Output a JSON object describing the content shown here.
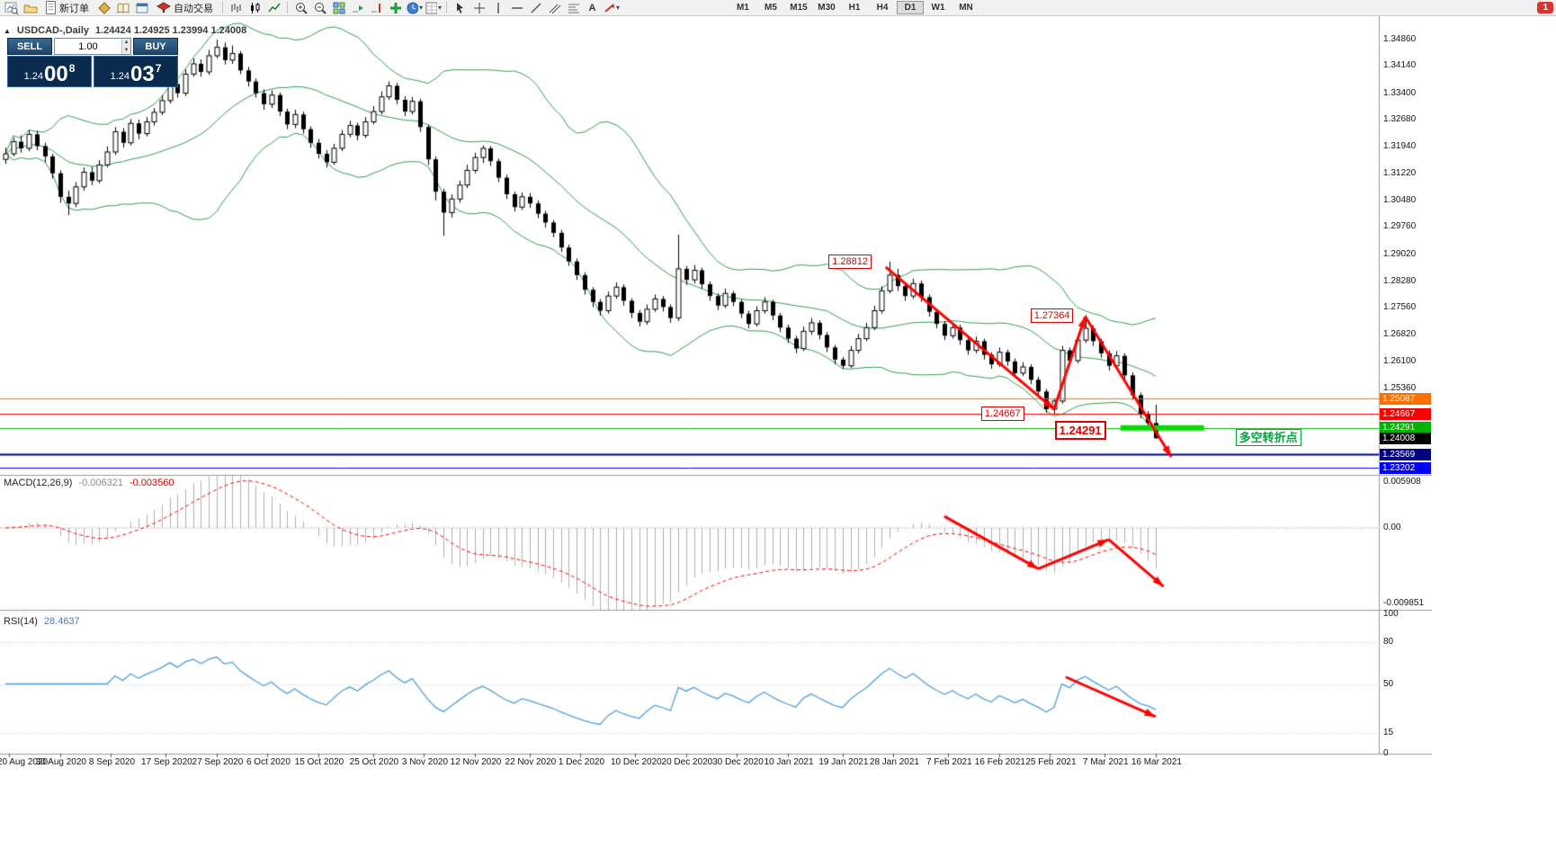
{
  "toolbar": {
    "new_order_label": "新订单",
    "autotrading_label": "自动交易",
    "timeframes": [
      "M1",
      "M5",
      "M15",
      "M30",
      "H1",
      "H4",
      "D1",
      "W1",
      "MN"
    ],
    "active_timeframe": "D1",
    "notification_badge": "1"
  },
  "chart": {
    "symbol_period": "USDCAD-,Daily",
    "ohlc_line": "1.24424 1.24925 1.23994 1.24008"
  },
  "one_click": {
    "sell_label": "SELL",
    "buy_label": "BUY",
    "volume": "1.00",
    "bid": {
      "prefix": "1.24",
      "big": "00",
      "sup": "8"
    },
    "ask": {
      "prefix": "1.24",
      "big": "03",
      "sup": "7"
    }
  },
  "macd_panel": {
    "label": "MACD(12,26,9)",
    "main_value": "-0.006321",
    "signal_value": "-0.003560"
  },
  "rsi_panel": {
    "label": "RSI(14)",
    "value": "28.4637"
  },
  "chart_data": {
    "type": "candlestick",
    "symbol": "USDCAD-",
    "timeframe": "Daily",
    "current_ohlc": {
      "open": 1.24424,
      "high": 1.24925,
      "low": 1.23994,
      "close": 1.24008
    },
    "colors": {
      "bollinger": "#2f9e4f",
      "bull": "#ffffff",
      "bear": "#000000",
      "outline": "#000000",
      "macd_histogram": "#b0b0b0",
      "macd_signal": "#ff0000",
      "rsi_line": "#4f9fe0",
      "arrow": "#ff0000",
      "separator": "#9a9a9a"
    },
    "indicators": {
      "bollinger": {
        "period": 20,
        "deviation": 2
      },
      "macd": {
        "fast": 12,
        "slow": 26,
        "signal": 9
      },
      "rsi": {
        "period": 14,
        "levels": [
          80,
          50,
          15
        ]
      }
    },
    "candles": [
      [
        1.316,
        1.3192,
        1.3148,
        1.3175
      ],
      [
        1.3175,
        1.322,
        1.3168,
        1.3208
      ],
      [
        1.3208,
        1.3225,
        1.3178,
        1.319
      ],
      [
        1.319,
        1.324,
        1.3182,
        1.3228
      ],
      [
        1.3228,
        1.3238,
        1.3185,
        1.3196
      ],
      [
        1.3196,
        1.3205,
        1.3152,
        1.3168
      ],
      [
        1.3168,
        1.3175,
        1.3108,
        1.3122
      ],
      [
        1.3122,
        1.313,
        1.3042,
        1.3058
      ],
      [
        1.3058,
        1.3075,
        1.3008,
        1.304
      ],
      [
        1.304,
        1.3098,
        1.303,
        1.3085
      ],
      [
        1.3085,
        1.3138,
        1.3075,
        1.3125
      ],
      [
        1.3125,
        1.314,
        1.309,
        1.3102
      ],
      [
        1.3102,
        1.3158,
        1.3095,
        1.3145
      ],
      [
        1.3145,
        1.3195,
        1.3138,
        1.318
      ],
      [
        1.318,
        1.3248,
        1.3172,
        1.3235
      ],
      [
        1.3235,
        1.3245,
        1.3192,
        1.3205
      ],
      [
        1.3205,
        1.327,
        1.3198,
        1.3258
      ],
      [
        1.3258,
        1.3268,
        1.3215,
        1.323
      ],
      [
        1.323,
        1.3275,
        1.3222,
        1.3262
      ],
      [
        1.3262,
        1.33,
        1.3252,
        1.3288
      ],
      [
        1.3288,
        1.3335,
        1.328,
        1.332
      ],
      [
        1.332,
        1.338,
        1.3312,
        1.3365
      ],
      [
        1.3365,
        1.3375,
        1.3328,
        1.334
      ],
      [
        1.334,
        1.3405,
        1.3332,
        1.3392
      ],
      [
        1.3392,
        1.3435,
        1.3385,
        1.342
      ],
      [
        1.342,
        1.3432,
        1.3385,
        1.3398
      ],
      [
        1.3398,
        1.3458,
        1.339,
        1.3442
      ],
      [
        1.3442,
        1.3486,
        1.3435,
        1.3465
      ],
      [
        1.3465,
        1.3478,
        1.3418,
        1.343
      ],
      [
        1.343,
        1.347,
        1.342,
        1.3448
      ],
      [
        1.3448,
        1.3455,
        1.3392,
        1.3402
      ],
      [
        1.3402,
        1.3412,
        1.3358,
        1.3372
      ],
      [
        1.3372,
        1.338,
        1.3328,
        1.334
      ],
      [
        1.334,
        1.335,
        1.3295,
        1.331
      ],
      [
        1.331,
        1.3348,
        1.33,
        1.3335
      ],
      [
        1.3335,
        1.3342,
        1.3278,
        1.329
      ],
      [
        1.329,
        1.3298,
        1.3242,
        1.3255
      ],
      [
        1.3255,
        1.3295,
        1.3245,
        1.3282
      ],
      [
        1.3282,
        1.329,
        1.323,
        1.3242
      ],
      [
        1.3242,
        1.325,
        1.3192,
        1.3205
      ],
      [
        1.3205,
        1.3215,
        1.3162,
        1.3175
      ],
      [
        1.3175,
        1.3185,
        1.3138,
        1.3152
      ],
      [
        1.3152,
        1.3202,
        1.3145,
        1.319
      ],
      [
        1.319,
        1.324,
        1.3182,
        1.3228
      ],
      [
        1.3228,
        1.3265,
        1.322,
        1.3252
      ],
      [
        1.3252,
        1.326,
        1.3212,
        1.3225
      ],
      [
        1.3225,
        1.3275,
        1.3218,
        1.3262
      ],
      [
        1.3262,
        1.3305,
        1.3255,
        1.329
      ],
      [
        1.329,
        1.3345,
        1.3282,
        1.333
      ],
      [
        1.333,
        1.3372,
        1.3322,
        1.336
      ],
      [
        1.336,
        1.3368,
        1.331,
        1.3322
      ],
      [
        1.3322,
        1.3332,
        1.3278,
        1.329
      ],
      [
        1.329,
        1.333,
        1.3282,
        1.3318
      ],
      [
        1.3318,
        1.3325,
        1.3235,
        1.3248
      ],
      [
        1.3248,
        1.3255,
        1.3145,
        1.316
      ],
      [
        1.316,
        1.3168,
        1.3048,
        1.3072
      ],
      [
        1.3072,
        1.308,
        1.2952,
        1.3015
      ],
      [
        1.3015,
        1.3065,
        1.3002,
        1.3052
      ],
      [
        1.3052,
        1.3102,
        1.3042,
        1.309
      ],
      [
        1.309,
        1.3145,
        1.3082,
        1.313
      ],
      [
        1.313,
        1.3178,
        1.3122,
        1.3165
      ],
      [
        1.3165,
        1.3198,
        1.315,
        1.319
      ],
      [
        1.319,
        1.3196,
        1.3142,
        1.3155
      ],
      [
        1.3155,
        1.3162,
        1.3098,
        1.311
      ],
      [
        1.311,
        1.3118,
        1.3052,
        1.3065
      ],
      [
        1.3065,
        1.3072,
        1.3018,
        1.303
      ],
      [
        1.303,
        1.307,
        1.3022,
        1.3058
      ],
      [
        1.3058,
        1.3068,
        1.3028,
        1.304
      ],
      [
        1.304,
        1.3048,
        1.3,
        1.3012
      ],
      [
        1.3012,
        1.302,
        1.2975,
        1.2988
      ],
      [
        1.2988,
        1.2995,
        1.2948,
        1.296
      ],
      [
        1.296,
        1.2968,
        1.2908,
        1.292
      ],
      [
        1.292,
        1.2928,
        1.287,
        1.2882
      ],
      [
        1.2882,
        1.289,
        1.2832,
        1.2845
      ],
      [
        1.2845,
        1.2852,
        1.2792,
        1.2805
      ],
      [
        1.2805,
        1.2812,
        1.2758,
        1.2772
      ],
      [
        1.2772,
        1.278,
        1.2735,
        1.2748
      ],
      [
        1.2748,
        1.28,
        1.274,
        1.2788
      ],
      [
        1.2788,
        1.2825,
        1.278,
        1.2812
      ],
      [
        1.2812,
        1.282,
        1.2762,
        1.2775
      ],
      [
        1.2775,
        1.2782,
        1.2728,
        1.2742
      ],
      [
        1.2742,
        1.275,
        1.2705,
        1.2718
      ],
      [
        1.2718,
        1.2765,
        1.271,
        1.2752
      ],
      [
        1.2752,
        1.2792,
        1.2745,
        1.278
      ],
      [
        1.278,
        1.2788,
        1.2746,
        1.2758
      ],
      [
        1.2758,
        1.2765,
        1.2715,
        1.2728
      ],
      [
        1.2728,
        1.2955,
        1.272,
        1.2862
      ],
      [
        1.2862,
        1.287,
        1.2818,
        1.2832
      ],
      [
        1.2832,
        1.2872,
        1.2822,
        1.2858
      ],
      [
        1.2858,
        1.2865,
        1.2808,
        1.282
      ],
      [
        1.282,
        1.2828,
        1.2775,
        1.2788
      ],
      [
        1.2788,
        1.2795,
        1.275,
        1.2762
      ],
      [
        1.2762,
        1.2808,
        1.2755,
        1.2795
      ],
      [
        1.2795,
        1.2802,
        1.276,
        1.2772
      ],
      [
        1.2772,
        1.2778,
        1.2728,
        1.274
      ],
      [
        1.274,
        1.2748,
        1.27,
        1.2712
      ],
      [
        1.2712,
        1.276,
        1.2705,
        1.2748
      ],
      [
        1.2748,
        1.2785,
        1.274,
        1.2772
      ],
      [
        1.2772,
        1.2778,
        1.2722,
        1.2735
      ],
      [
        1.2735,
        1.2742,
        1.269,
        1.2702
      ],
      [
        1.2702,
        1.271,
        1.266,
        1.2672
      ],
      [
        1.2672,
        1.268,
        1.2632,
        1.2645
      ],
      [
        1.2645,
        1.2705,
        1.2638,
        1.2692
      ],
      [
        1.2692,
        1.2728,
        1.2682,
        1.2715
      ],
      [
        1.2715,
        1.2722,
        1.267,
        1.2682
      ],
      [
        1.2682,
        1.269,
        1.2635,
        1.2648
      ],
      [
        1.2648,
        1.2655,
        1.2602,
        1.2615
      ],
      [
        1.2615,
        1.2622,
        1.259,
        1.2598
      ],
      [
        1.2598,
        1.2652,
        1.2592,
        1.264
      ],
      [
        1.264,
        1.2685,
        1.2632,
        1.2672
      ],
      [
        1.2672,
        1.2715,
        1.2665,
        1.2702
      ],
      [
        1.2702,
        1.2762,
        1.2695,
        1.2748
      ],
      [
        1.2748,
        1.2815,
        1.274,
        1.2802
      ],
      [
        1.2802,
        1.28812,
        1.2795,
        1.2845
      ],
      [
        1.2845,
        1.2862,
        1.2802,
        1.2815
      ],
      [
        1.2815,
        1.2825,
        1.2775,
        1.2788
      ],
      [
        1.2788,
        1.2835,
        1.278,
        1.2822
      ],
      [
        1.2822,
        1.283,
        1.2772,
        1.2785
      ],
      [
        1.2785,
        1.2792,
        1.2732,
        1.2745
      ],
      [
        1.2745,
        1.2752,
        1.27,
        1.2712
      ],
      [
        1.2712,
        1.272,
        1.2668,
        1.268
      ],
      [
        1.268,
        1.2715,
        1.2672,
        1.2702
      ],
      [
        1.2702,
        1.271,
        1.2655,
        1.2668
      ],
      [
        1.2668,
        1.2675,
        1.2628,
        1.264
      ],
      [
        1.264,
        1.2678,
        1.2632,
        1.2665
      ],
      [
        1.2665,
        1.2672,
        1.2615,
        1.2628
      ],
      [
        1.2628,
        1.2635,
        1.259,
        1.2602
      ],
      [
        1.2602,
        1.2648,
        1.2595,
        1.2635
      ],
      [
        1.2635,
        1.2642,
        1.2598,
        1.261
      ],
      [
        1.261,
        1.2618,
        1.2565,
        1.2578
      ],
      [
        1.2578,
        1.2608,
        1.257,
        1.2595
      ],
      [
        1.2595,
        1.2602,
        1.2548,
        1.256
      ],
      [
        1.256,
        1.2568,
        1.2515,
        1.2528
      ],
      [
        1.2528,
        1.2535,
        1.247,
        1.248
      ],
      [
        1.248,
        1.251,
        1.24667,
        1.2502
      ],
      [
        1.2502,
        1.2652,
        1.2495,
        1.264
      ],
      [
        1.264,
        1.2648,
        1.2598,
        1.2612
      ],
      [
        1.2612,
        1.268,
        1.2605,
        1.2668
      ],
      [
        1.2668,
        1.27364,
        1.266,
        1.27
      ],
      [
        1.27,
        1.2708,
        1.2652,
        1.2665
      ],
      [
        1.2665,
        1.2672,
        1.262,
        1.2632
      ],
      [
        1.2632,
        1.264,
        1.2585,
        1.2598
      ],
      [
        1.2598,
        1.2638,
        1.259,
        1.2625
      ],
      [
        1.2625,
        1.2632,
        1.256,
        1.2572
      ],
      [
        1.2572,
        1.258,
        1.2505,
        1.2518
      ],
      [
        1.2518,
        1.2525,
        1.2455,
        1.2468
      ],
      [
        1.2468,
        1.2475,
        1.2428,
        1.2442
      ],
      [
        1.24424,
        1.24925,
        1.23994,
        1.24008
      ]
    ],
    "hlines": [
      {
        "price": 1.25087,
        "color": "#ff7000",
        "width": 1
      },
      {
        "price": 1.24667,
        "color": "#ff0000",
        "width": 1
      },
      {
        "price": 1.24291,
        "color": "#00b300",
        "width": 1
      },
      {
        "price": 1.23569,
        "color": "#000080",
        "width": 2
      },
      {
        "price": 1.23202,
        "color": "#0000ff",
        "width": 1
      }
    ],
    "highlight_segment": {
      "price": 1.24291,
      "from_index": 142.5,
      "to_index": 153.2,
      "color": "#00e000",
      "width": 6
    },
    "trend_arrows": {
      "main": [
        [
          112.5,
          1.2867
        ],
        [
          134,
          1.248
        ],
        [
          138,
          1.2732
        ],
        [
          149,
          1.235
        ]
      ],
      "macd": [
        [
          120,
          0.0015
        ],
        [
          132,
          -0.0053
        ],
        [
          141,
          -0.0015
        ],
        [
          148,
          -0.0076
        ]
      ],
      "rsi": [
        [
          135.5,
          55
        ],
        [
          147,
          26.5
        ]
      ]
    },
    "annotations": [
      {
        "text": "1.28812",
        "index": 105.2,
        "price": 1.2901,
        "style": "red"
      },
      {
        "text": "1.27364",
        "index": 131.0,
        "price": 1.2754,
        "style": "red"
      },
      {
        "text": "1.24667",
        "index": 124.7,
        "price": 1.2487,
        "style": "red"
      },
      {
        "text": "1.24291",
        "index": 134.1,
        "price": 1.2448,
        "style": "red-big"
      },
      {
        "text": "多空转折点",
        "index": 157.2,
        "price": 1.2426,
        "style": "green"
      }
    ],
    "price_labels": [
      {
        "text": "1.34860",
        "price": 1.3486
      },
      {
        "text": "1.34140",
        "price": 1.3414
      },
      {
        "text": "1.33400",
        "price": 1.334
      },
      {
        "text": "1.32680",
        "price": 1.3268
      },
      {
        "text": "1.31940",
        "price": 1.3194
      },
      {
        "text": "1.31220",
        "price": 1.3122
      },
      {
        "text": "1.30480",
        "price": 1.3048
      },
      {
        "text": "1.29760",
        "price": 1.2976
      },
      {
        "text": "1.29020",
        "price": 1.2902
      },
      {
        "text": "1.28280",
        "price": 1.2828
      },
      {
        "text": "1.27560",
        "price": 1.2756
      },
      {
        "text": "1.26820",
        "price": 1.2682
      },
      {
        "text": "1.26100",
        "price": 1.261
      },
      {
        "text": "1.25360",
        "price": 1.2536
      }
    ],
    "price_tags": [
      {
        "text": "1.25087",
        "price": 1.25087,
        "color": "#ff7000"
      },
      {
        "text": "1.24667",
        "price": 1.24667,
        "color": "#ff0000"
      },
      {
        "text": "1.24291",
        "price": 1.24291,
        "color": "#00b300"
      },
      {
        "text": "1.24008",
        "price": 1.24008,
        "color": "#000000"
      },
      {
        "text": "1.23569",
        "price": 1.23569,
        "color": "#000080"
      },
      {
        "text": "1.23202",
        "price": 1.23202,
        "color": "#0000ff"
      }
    ],
    "macd_axis": [
      {
        "text": "0.005908",
        "value": 0.005908
      },
      {
        "text": "0.00",
        "value": 0
      },
      {
        "text": "-0.009851",
        "value": -0.009851
      }
    ],
    "rsi_axis": [
      {
        "text": "100",
        "value": 100
      },
      {
        "text": "80",
        "value": 80
      },
      {
        "text": "50",
        "value": 50
      },
      {
        "text": "15",
        "value": 15
      },
      {
        "text": "0",
        "value": 0
      }
    ],
    "dates": [
      {
        "text": "20 Aug 2020",
        "index": 0.5
      },
      {
        "text": "30 Aug 2020",
        "index": 7
      },
      {
        "text": "8 Sep 2020",
        "index": 13.5
      },
      {
        "text": "17 Sep 2020",
        "index": 20.5
      },
      {
        "text": "27 Sep 2020",
        "index": 27
      },
      {
        "text": "6 Oct 2020",
        "index": 33.5
      },
      {
        "text": "15 Oct 2020",
        "index": 40
      },
      {
        "text": "25 Oct 2020",
        "index": 47
      },
      {
        "text": "3 Nov 2020",
        "index": 53.5
      },
      {
        "text": "12 Nov 2020",
        "index": 60
      },
      {
        "text": "22 Nov 2020",
        "index": 67
      },
      {
        "text": "1 Dec 2020",
        "index": 73.5
      },
      {
        "text": "10 Dec 2020",
        "index": 80.5
      },
      {
        "text": "20 Dec 2020",
        "index": 87
      },
      {
        "text": "30 Dec 2020",
        "index": 93.5
      },
      {
        "text": "10 Jan 2021",
        "index": 100
      },
      {
        "text": "19 Jan 2021",
        "index": 107
      },
      {
        "text": "28 Jan 2021",
        "index": 113.5
      },
      {
        "text": "7 Feb 2021",
        "index": 120.5
      },
      {
        "text": "16 Feb 2021",
        "index": 127
      },
      {
        "text": "25 Feb 2021",
        "index": 133.5
      },
      {
        "text": "7 Mar 2021",
        "index": 140.5
      },
      {
        "text": "16 Mar 2021",
        "index": 147
      }
    ]
  }
}
